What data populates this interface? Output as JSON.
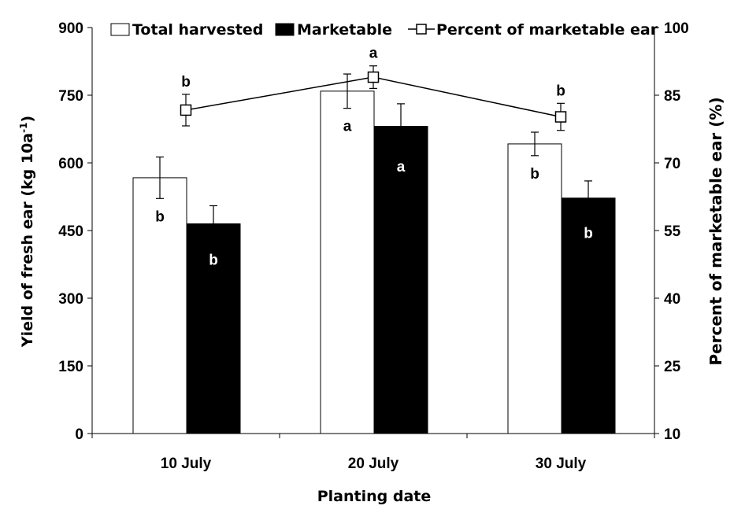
{
  "chart_data": {
    "type": "bar",
    "categories": [
      "10 July",
      "20 July",
      "30 July"
    ],
    "xlabel": "Planting date",
    "ylabel_left": {
      "main": "Yield of fresh ear (kg 10a",
      "sup": "-1",
      "close": ")"
    },
    "ylabel_right": "Percent of marketable ear (%)",
    "ylim_left": [
      0,
      900
    ],
    "yticks_left": [
      0,
      150,
      300,
      450,
      600,
      750,
      900
    ],
    "ylim_right": [
      10,
      100
    ],
    "yticks_right": [
      10,
      25,
      40,
      55,
      70,
      85,
      100
    ],
    "grid": false,
    "legend_position": "top",
    "bar_series": [
      {
        "name": "Total harvested",
        "values": [
          567,
          759,
          642
        ],
        "errors": [
          46,
          38,
          26
        ],
        "letters": [
          "b",
          "a",
          "b"
        ],
        "fill": "#ffffff",
        "stroke": "#000000",
        "letter_color": "#000000"
      },
      {
        "name": "Marketable",
        "values": [
          465,
          681,
          522
        ],
        "errors": [
          40,
          50,
          38
        ],
        "letters": [
          "b",
          "a",
          "b"
        ],
        "fill": "#000000",
        "stroke": "#000000",
        "letter_color": "#ffffff"
      }
    ],
    "line_series": {
      "name": "Percent of marketable ear",
      "axis": "right",
      "marker": "open-square",
      "values": [
        81.7,
        89.0,
        80.2
      ],
      "errors": [
        3.5,
        2.5,
        3.0
      ],
      "letters": [
        "b",
        "a",
        "b"
      ]
    }
  }
}
